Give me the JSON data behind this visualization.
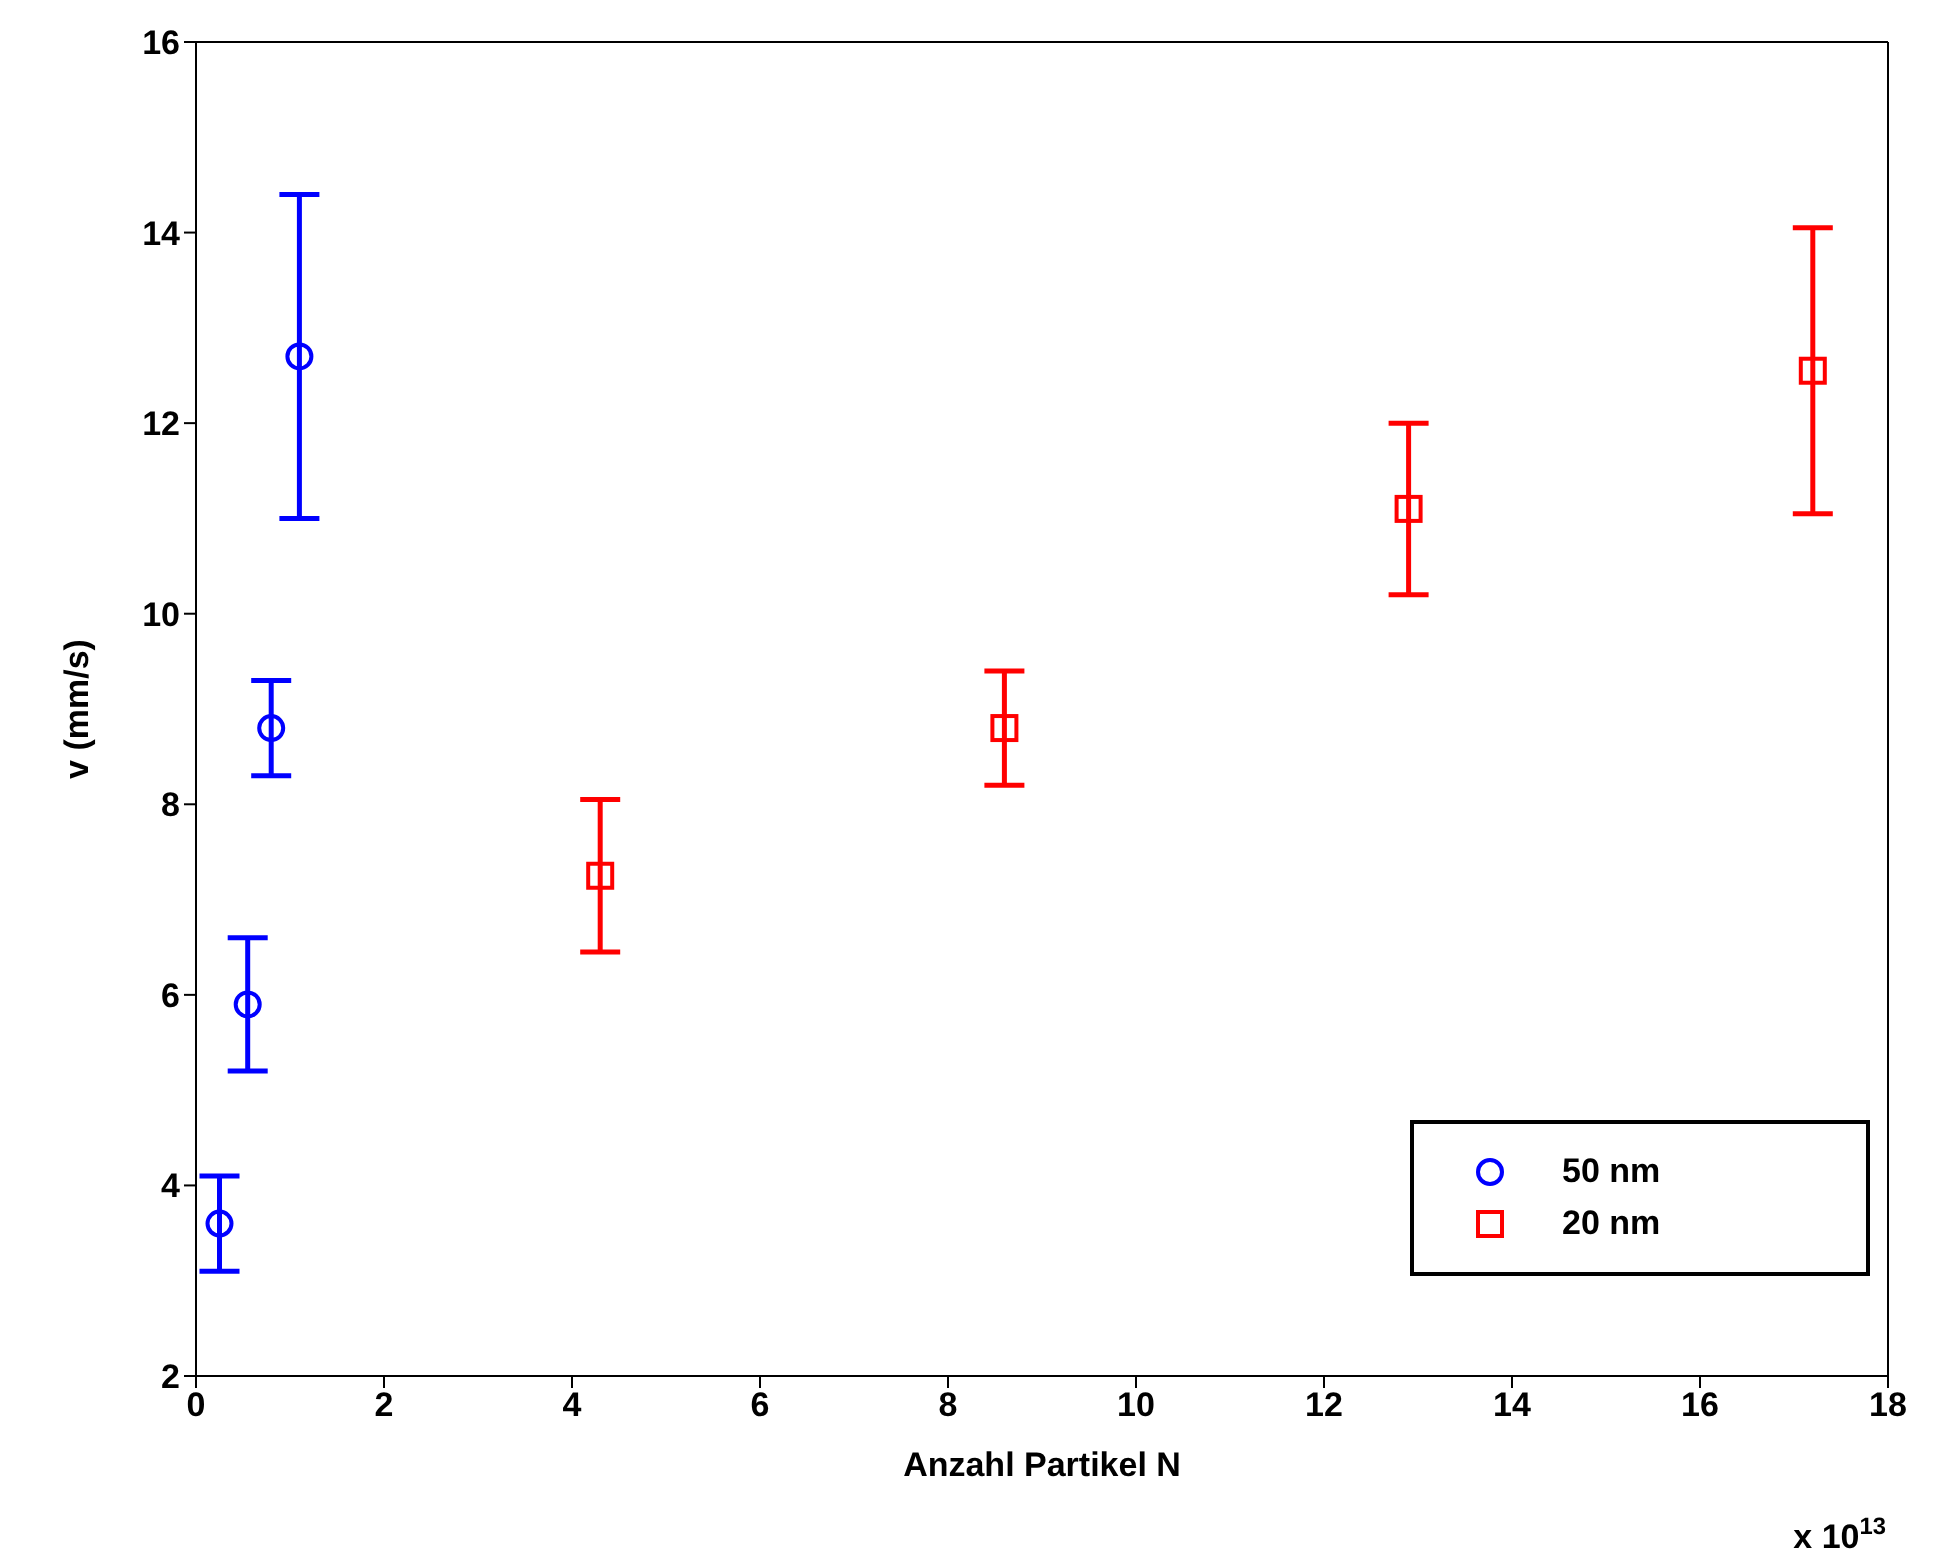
{
  "chart_data": {
    "type": "scatter",
    "xlabel": "Anzahl Partikel N",
    "ylabel": "v (mm/s)",
    "annotations": [
      "x 10$^{13}$"
    ],
    "xlim": [
      0,
      18
    ],
    "xticks": [
      0,
      2,
      4,
      6,
      8,
      10,
      12,
      14,
      16,
      18
    ],
    "ylim": [
      2,
      16
    ],
    "yticks": [
      2,
      4,
      6,
      8,
      10,
      12,
      14,
      16
    ],
    "grid": false,
    "legend": "bottom right",
    "series": [
      {
        "name": "50 nm",
        "color": "#0000ff",
        "marker": "circle",
        "x": [
          0.25,
          0.55,
          0.8,
          1.1
        ],
        "values": [
          3.6,
          5.9,
          8.8,
          12.7
        ],
        "errors": [
          0.5,
          0.7,
          0.5,
          1.7
        ]
      },
      {
        "name": "20 nm",
        "color": "#ff0000",
        "marker": "square",
        "x": [
          4.3,
          8.6,
          12.9,
          17.2
        ],
        "values": [
          7.25,
          8.8,
          11.1,
          12.55
        ],
        "errors": [
          0.8,
          0.6,
          0.9,
          1.5
        ]
      }
    ]
  }
}
